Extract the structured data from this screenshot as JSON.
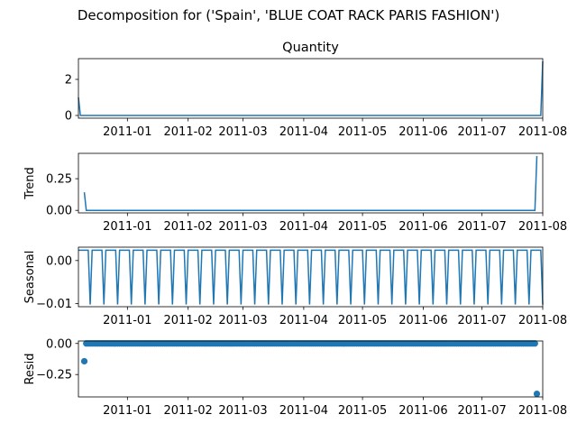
{
  "figure": {
    "suptitle": "Decomposition for ('Spain', 'BLUE COAT RACK PARIS FASHION')"
  },
  "chart_data": [
    {
      "type": "line",
      "panel": "observed",
      "title": "Quantity",
      "ylabel": "",
      "x_ticks": [
        "2011-01",
        "2011-02",
        "2011-03",
        "2011-04",
        "2011-05",
        "2011-06",
        "2011-07",
        "2011-08"
      ],
      "y_ticks": [
        "0",
        "2"
      ],
      "ylim": [
        -0.15,
        3.15
      ],
      "x": [
        "2010-12-07",
        "2010-12-08",
        "2011-07-31",
        "2011-08-01"
      ],
      "y": [
        1,
        0,
        0,
        3
      ],
      "note_x_span": "daily series 2010-12-07 to 2011-08-01"
    },
    {
      "type": "line",
      "panel": "trend",
      "ylabel": "Trend",
      "x_ticks": [
        "2011-01",
        "2011-02",
        "2011-03",
        "2011-04",
        "2011-05",
        "2011-06",
        "2011-07",
        "2011-08"
      ],
      "y_ticks": [
        "0.00",
        "0.25"
      ],
      "ylim": [
        -0.02,
        0.45
      ],
      "x": [
        "2010-12-10",
        "2010-12-11",
        "2011-07-28",
        "2011-07-29"
      ],
      "y": [
        0.143,
        0.0,
        0.0,
        0.429
      ]
    },
    {
      "type": "line",
      "panel": "seasonal",
      "ylabel": "Seasonal",
      "x_ticks": [
        "2011-01",
        "2011-02",
        "2011-03",
        "2011-04",
        "2011-05",
        "2011-06",
        "2011-07",
        "2011-08"
      ],
      "y_ticks": [
        "0.00",
        "−0.01"
      ],
      "ylim": [
        -0.0107,
        0.0031
      ],
      "pattern_7day": [
        0.0024,
        0.0024,
        0.0024,
        0.0024,
        0.0024,
        0.0024,
        -0.0102
      ],
      "start": "2010-12-07",
      "end": "2011-08-01"
    },
    {
      "type": "scatter",
      "panel": "resid",
      "ylabel": "Resid",
      "x_ticks": [
        "2011-01",
        "2011-02",
        "2011-03",
        "2011-04",
        "2011-05",
        "2011-06",
        "2011-07",
        "2011-08"
      ],
      "y_ticks": [
        "0.00",
        "−0.25"
      ],
      "ylim": [
        -0.43,
        0.02
      ],
      "baseline": 0.0,
      "outliers": [
        {
          "x": "2010-12-10",
          "y": -0.143
        },
        {
          "x": "2011-07-29",
          "y": -0.405
        }
      ],
      "start": "2010-12-10",
      "end": "2011-07-29"
    }
  ],
  "colors": {
    "series": "#1f77b4",
    "axes": "#000000"
  }
}
